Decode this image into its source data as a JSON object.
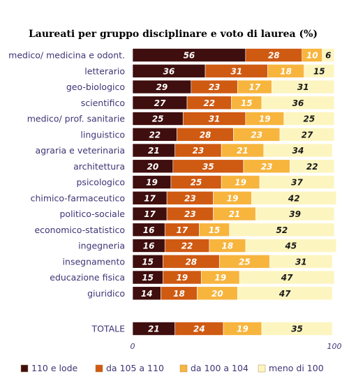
{
  "chart_data": {
    "type": "bar",
    "orientation": "horizontal",
    "stacked": true,
    "title": "Laureati per gruppo disciplinare e voto di laurea (%)",
    "xlim": [
      0,
      100
    ],
    "x_ticks": [
      "0",
      "100"
    ],
    "grid": false,
    "legend_position": "bottom",
    "categories": [
      "medico/ medicina e odont.",
      "letterario",
      "geo-biologico",
      "scientifico",
      "medico/ prof. sanitarie",
      "linguistico",
      "agraria e veterinaria",
      "architettura",
      "psicologico",
      "chimico-farmaceutico",
      "politico-sociale",
      "economico-statistico",
      "ingegneria",
      "insegnamento",
      "educazione fisica",
      "giuridico",
      "TOTALE"
    ],
    "series": [
      {
        "name": "110 e lode",
        "color": "#3f0e0e",
        "label_color": "#ffffff",
        "values": [
          56,
          36,
          29,
          27,
          25,
          22,
          21,
          20,
          19,
          17,
          17,
          16,
          16,
          15,
          15,
          14,
          21
        ]
      },
      {
        "name": "da 105 a 110",
        "color": "#cf5a12",
        "label_color": "#ffffff",
        "values": [
          28,
          31,
          23,
          22,
          31,
          28,
          23,
          35,
          25,
          23,
          23,
          17,
          22,
          28,
          19,
          18,
          24
        ]
      },
      {
        "name": "da 100 a 104",
        "color": "#f7b53e",
        "label_color": "#ffffff",
        "values": [
          10,
          18,
          17,
          15,
          19,
          23,
          21,
          23,
          19,
          19,
          21,
          15,
          18,
          25,
          19,
          20,
          19
        ]
      },
      {
        "name": "meno di 100",
        "color": "#fdf5c0",
        "label_color": "#1a1a1a",
        "values": [
          6,
          15,
          31,
          36,
          25,
          27,
          34,
          22,
          37,
          42,
          39,
          52,
          45,
          31,
          47,
          47,
          35
        ]
      }
    ]
  }
}
